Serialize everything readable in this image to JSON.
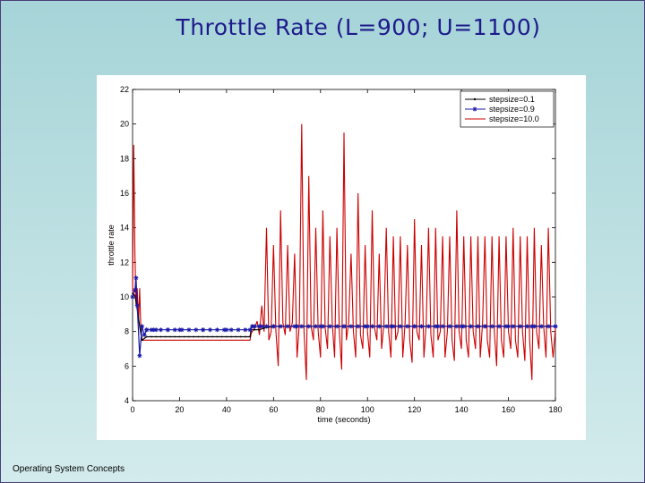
{
  "slide": {
    "title": "Throttle Rate (L=900; U=1100)",
    "footer": "Operating System Concepts"
  },
  "colors": {
    "background": "#bfe1e3",
    "title": "#1e1a8c",
    "series_a": "#000000",
    "series_b": "#1a1aa8",
    "series_c": "#cc0000"
  },
  "chart_data": {
    "type": "line",
    "title": "",
    "xlabel": "time (seconds)",
    "ylabel": "throttle rate",
    "xlim": [
      0,
      180
    ],
    "ylim": [
      4,
      22
    ],
    "xticks": [
      0,
      20,
      40,
      60,
      80,
      100,
      120,
      140,
      160,
      180
    ],
    "yticks": [
      4,
      6,
      8,
      10,
      12,
      14,
      16,
      18,
      20,
      22
    ],
    "legend_position": "top-right",
    "series": [
      {
        "name": "stepsize=0.1",
        "marker": "dot",
        "points": [
          [
            0,
            10.2
          ],
          [
            1,
            10.1
          ],
          [
            2,
            9.3
          ],
          [
            3,
            8.3
          ],
          [
            4,
            7.5
          ],
          [
            5,
            7.6
          ],
          [
            6,
            7.7
          ],
          [
            10,
            7.7
          ],
          [
            30,
            7.7
          ],
          [
            50,
            7.7
          ],
          [
            50.5,
            8.1
          ],
          [
            52,
            8.1
          ],
          [
            54,
            8.1
          ],
          [
            56,
            8.2
          ],
          [
            60,
            8.3
          ],
          [
            80,
            8.3
          ],
          [
            100,
            8.3
          ],
          [
            120,
            8.3
          ],
          [
            140,
            8.3
          ],
          [
            160,
            8.3
          ],
          [
            180,
            8.3
          ]
        ]
      },
      {
        "name": "stepsize=0.9",
        "marker": "star",
        "points": [
          [
            0,
            10.0
          ],
          [
            1,
            10.4
          ],
          [
            1.5,
            11.1
          ],
          [
            2,
            9.5
          ],
          [
            3,
            6.6
          ],
          [
            4,
            8.3
          ],
          [
            5,
            7.8
          ],
          [
            6,
            8.1
          ],
          [
            8,
            8.1
          ],
          [
            10,
            8.1
          ],
          [
            15,
            8.1
          ],
          [
            20,
            8.1
          ],
          [
            30,
            8.1
          ],
          [
            40,
            8.1
          ],
          [
            50,
            8.1
          ],
          [
            51,
            8.3
          ],
          [
            52,
            8.3
          ],
          [
            55,
            8.3
          ],
          [
            60,
            8.3
          ],
          [
            70,
            8.3
          ],
          [
            80,
            8.3
          ],
          [
            90,
            8.3
          ],
          [
            100,
            8.3
          ],
          [
            110,
            8.3
          ],
          [
            120,
            8.3
          ],
          [
            130,
            8.3
          ],
          [
            140,
            8.3
          ],
          [
            150,
            8.3
          ],
          [
            160,
            8.3
          ],
          [
            170,
            8.3
          ],
          [
            180,
            8.3
          ]
        ]
      },
      {
        "name": "stepsize=10.0",
        "marker": "none",
        "points": [
          [
            0,
            10.1
          ],
          [
            0.5,
            18.8
          ],
          [
            1,
            12.5
          ],
          [
            1.5,
            9.5
          ],
          [
            2,
            10.5
          ],
          [
            2.5,
            8.5
          ],
          [
            3,
            10.5
          ],
          [
            3.5,
            8.2
          ],
          [
            4,
            7.5
          ],
          [
            5,
            7.5
          ],
          [
            10,
            7.5
          ],
          [
            30,
            7.5
          ],
          [
            50,
            7.5
          ],
          [
            50.5,
            7.9
          ],
          [
            52,
            8.2
          ],
          [
            53,
            8.6
          ],
          [
            54,
            7.8
          ],
          [
            55,
            9.5
          ],
          [
            56,
            8.0
          ],
          [
            57,
            14.0
          ],
          [
            58,
            7.5
          ],
          [
            59,
            8.0
          ],
          [
            60,
            13.0
          ],
          [
            61,
            8.0
          ],
          [
            62,
            6.0
          ],
          [
            63,
            15.0
          ],
          [
            64,
            8.5
          ],
          [
            65,
            7.8
          ],
          [
            66,
            13.0
          ],
          [
            67,
            8.0
          ],
          [
            68,
            8.5
          ],
          [
            69,
            12.5
          ],
          [
            70,
            6.5
          ],
          [
            71,
            8.5
          ],
          [
            72,
            20.0
          ],
          [
            73,
            8.0
          ],
          [
            74,
            5.2
          ],
          [
            75,
            17.0
          ],
          [
            76,
            8.3
          ],
          [
            77,
            7.5
          ],
          [
            78,
            14.0
          ],
          [
            79,
            8.0
          ],
          [
            80,
            6.5
          ],
          [
            81,
            15.0
          ],
          [
            82,
            8.2
          ],
          [
            83,
            7.0
          ],
          [
            84,
            13.5
          ],
          [
            85,
            8.5
          ],
          [
            86,
            6.5
          ],
          [
            87,
            14.0
          ],
          [
            88,
            8.0
          ],
          [
            89,
            5.8
          ],
          [
            90,
            19.5
          ],
          [
            91,
            7.5
          ],
          [
            92,
            8.5
          ],
          [
            93,
            12.5
          ],
          [
            94,
            8.0
          ],
          [
            95,
            6.5
          ],
          [
            96,
            16.0
          ],
          [
            97,
            7.8
          ],
          [
            98,
            7.0
          ],
          [
            99,
            13.0
          ],
          [
            100,
            8.0
          ],
          [
            101,
            6.5
          ],
          [
            102,
            15.0
          ],
          [
            103,
            8.2
          ],
          [
            104,
            7.5
          ],
          [
            105,
            12.5
          ],
          [
            106,
            7.0
          ],
          [
            107,
            8.5
          ],
          [
            108,
            14.0
          ],
          [
            109,
            8.0
          ],
          [
            110,
            6.5
          ],
          [
            111,
            13.5
          ],
          [
            112,
            7.5
          ],
          [
            113,
            8.0
          ],
          [
            114,
            13.5
          ],
          [
            115,
            6.5
          ],
          [
            116,
            8.5
          ],
          [
            117,
            13.0
          ],
          [
            118,
            7.5
          ],
          [
            119,
            6.2
          ],
          [
            120,
            14.5
          ],
          [
            121,
            8.0
          ],
          [
            122,
            7.5
          ],
          [
            123,
            13.0
          ],
          [
            124,
            6.5
          ],
          [
            125,
            8.5
          ],
          [
            126,
            14.0
          ],
          [
            127,
            7.8
          ],
          [
            128,
            6.5
          ],
          [
            129,
            14.0
          ],
          [
            130,
            7.5
          ],
          [
            131,
            8.0
          ],
          [
            132,
            13.5
          ],
          [
            133,
            6.5
          ],
          [
            134,
            8.0
          ],
          [
            135,
            13.5
          ],
          [
            136,
            7.5
          ],
          [
            137,
            6.3
          ],
          [
            138,
            15.0
          ],
          [
            139,
            8.0
          ],
          [
            140,
            7.0
          ],
          [
            141,
            13.5
          ],
          [
            142,
            7.5
          ],
          [
            143,
            6.5
          ],
          [
            144,
            13.5
          ],
          [
            145,
            8.0
          ],
          [
            146,
            7.0
          ],
          [
            147,
            13.5
          ],
          [
            148,
            6.5
          ],
          [
            149,
            8.5
          ],
          [
            150,
            13.5
          ],
          [
            151,
            7.5
          ],
          [
            152,
            6.5
          ],
          [
            153,
            13.5
          ],
          [
            154,
            8.0
          ],
          [
            155,
            6.0
          ],
          [
            156,
            13.5
          ],
          [
            157,
            7.5
          ],
          [
            158,
            6.5
          ],
          [
            159,
            13.5
          ],
          [
            160,
            8.0
          ],
          [
            161,
            7.0
          ],
          [
            162,
            14.0
          ],
          [
            163,
            7.5
          ],
          [
            164,
            6.5
          ],
          [
            165,
            13.5
          ],
          [
            166,
            8.0
          ],
          [
            167,
            6.3
          ],
          [
            168,
            13.5
          ],
          [
            169,
            7.5
          ],
          [
            170,
            5.2
          ],
          [
            171,
            14.0
          ],
          [
            172,
            8.0
          ],
          [
            173,
            7.0
          ],
          [
            174,
            13.0
          ],
          [
            175,
            8.3
          ],
          [
            176,
            6.5
          ],
          [
            177,
            14.0
          ],
          [
            178,
            8.0
          ],
          [
            179,
            6.5
          ],
          [
            180,
            8.2
          ]
        ]
      }
    ]
  }
}
